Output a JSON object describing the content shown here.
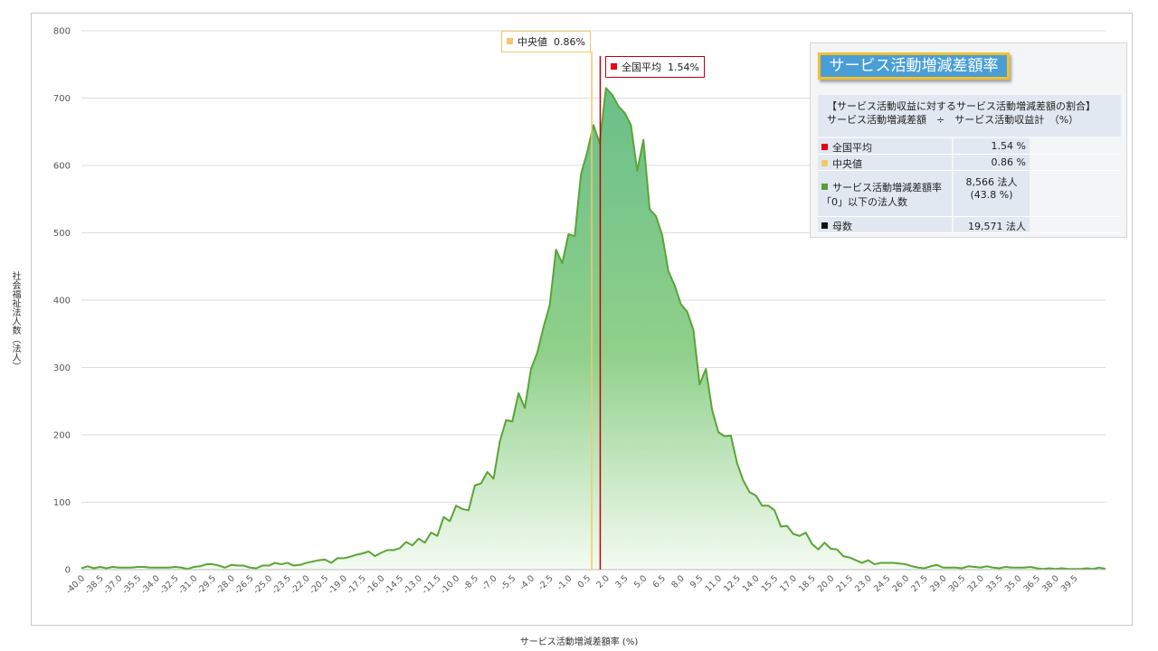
{
  "chart_data": {
    "type": "area",
    "title": "",
    "xlabel": "サービス活動増減差額率 (%)",
    "ylabel": "社会福祉法人数（法人）",
    "ylim": [
      0,
      800
    ],
    "y_ticks": [
      "0",
      "100",
      "200",
      "300",
      "400",
      "500",
      "600",
      "700",
      "800"
    ],
    "x_tick_labels": [
      "-40.0",
      "-38.5",
      "-37.0",
      "-35.5",
      "-34.0",
      "-32.5",
      "-31.0",
      "-29.5",
      "-28.0",
      "-26.5",
      "-25.0",
      "-23.5",
      "-22.0",
      "-20.5",
      "-19.0",
      "-17.5",
      "-16.0",
      "-14.5",
      "-13.0",
      "-11.5",
      "-10.0",
      "-8.5",
      "-7.0",
      "-5.5",
      "-4.0",
      "-2.5",
      "-1.0",
      "0.5",
      "2.0",
      "3.5",
      "5.0",
      "6.5",
      "8.0",
      "9.5",
      "11.0",
      "12.5",
      "14.0",
      "15.5",
      "17.0",
      "18.5",
      "20.0",
      "21.5",
      "23.0",
      "24.5",
      "26.0",
      "27.5",
      "29.0",
      "30.5",
      "32.0",
      "33.5",
      "35.0",
      "36.5",
      "38.0",
      "39.5"
    ],
    "x_start": -40.0,
    "x_step": 0.5,
    "values": [
      2,
      5,
      2,
      4,
      2,
      4,
      3,
      3,
      3,
      4,
      4,
      3,
      3,
      3,
      3,
      4,
      3,
      1,
      4,
      5,
      8,
      8,
      6,
      3,
      7,
      6,
      6,
      3,
      2,
      6,
      6,
      10,
      8,
      10,
      6,
      7,
      10,
      12,
      14,
      15,
      10,
      17,
      17,
      19,
      22,
      24,
      27,
      20,
      25,
      29,
      29,
      32,
      41,
      36,
      46,
      40,
      55,
      50,
      78,
      72,
      95,
      90,
      88,
      125,
      128,
      145,
      135,
      190,
      222,
      220,
      262,
      240,
      298,
      322,
      360,
      393,
      475,
      455,
      498,
      495,
      587,
      620,
      660,
      633,
      715,
      705,
      688,
      678,
      660,
      592,
      638,
      535,
      525,
      497,
      443,
      422,
      394,
      383,
      356,
      275,
      298,
      237,
      204,
      198,
      199,
      158,
      132,
      115,
      110,
      95,
      95,
      88,
      64,
      65,
      53,
      50,
      55,
      38,
      30,
      40,
      31,
      30,
      20,
      18,
      14,
      10,
      14,
      8,
      10,
      10,
      10,
      9,
      8,
      5,
      3,
      2,
      5,
      7,
      3,
      3,
      3,
      2,
      5,
      4,
      3,
      5,
      3,
      2,
      4,
      3,
      3,
      3,
      4,
      2,
      1,
      2,
      1,
      2,
      1,
      1,
      1,
      2,
      1,
      3,
      1
    ]
  },
  "markers": {
    "median": {
      "label": "中央値",
      "value_text": "0.86%",
      "x": 0.86,
      "color": "#f2c96a"
    },
    "mean": {
      "label": "全国平均",
      "value_text": "1.54%",
      "x": 1.54,
      "color": "#c0000b"
    }
  },
  "panel": {
    "title": "サービス活動増減差額率",
    "formula_line1": "【サービス活動収益に対するサービス活動増減差額の割合】",
    "formula_line2": "サービス活動増減差額　÷　サービス活動収益計　（%）",
    "rows": [
      {
        "key": "全国平均",
        "value": "1.54 %",
        "color": "#e60012"
      },
      {
        "key": "中央値",
        "value": "0.86 %",
        "color": "#f2c96a"
      },
      {
        "key": "サービス活動増減差額率「0」以下の法人数",
        "value": "8,566 法人\n(43.8 %)",
        "color": "#5a9c35"
      },
      {
        "key": "母数",
        "value": "19,571 法人",
        "color": "#111111"
      }
    ]
  }
}
